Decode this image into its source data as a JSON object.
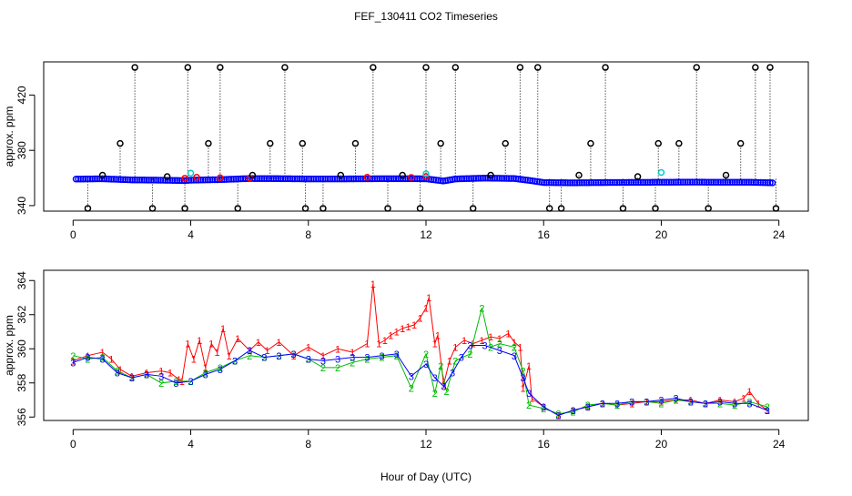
{
  "chart_data": [
    {
      "type": "scatter",
      "title": "FEF_130411  CO2 Timeseries",
      "xlabel": "",
      "ylabel": "approx. ppm",
      "xlim": [
        -1,
        25
      ],
      "ylim": [
        336,
        444
      ],
      "xticks": [
        0,
        4,
        8,
        12,
        16,
        20,
        24
      ],
      "xtick_labels": [
        "0",
        "4",
        "8",
        "12",
        "16",
        "20",
        "24"
      ],
      "yticks": [
        340,
        380,
        420
      ],
      "ytick_labels": [
        "340",
        "380",
        "420"
      ],
      "description_series": [
        {
          "name": "blue",
          "color": "#0000ff",
          "x": [
            0.1,
            1.0,
            2.0,
            3.0,
            3.8,
            4.0,
            5.0,
            6.0,
            7.0,
            8.0,
            9.0,
            10.0,
            11.0,
            12.0,
            12.6,
            13.0,
            14.0,
            15.0,
            15.6,
            16.0,
            17.0,
            18.0,
            19.0,
            20.0,
            21.0,
            22.0,
            23.0,
            23.8
          ],
          "y": [
            359.2,
            359.4,
            358.6,
            358.4,
            358.1,
            358.4,
            358.8,
            359.6,
            359.5,
            359.3,
            359.3,
            359.4,
            359.5,
            359.4,
            357.8,
            359.3,
            359.9,
            359.6,
            358.0,
            356.7,
            356.5,
            356.7,
            356.8,
            356.9,
            357.0,
            356.9,
            356.9,
            356.5
          ]
        },
        {
          "name": "red",
          "color": "#ff0000",
          "x": [
            3.8,
            4.2,
            5.0,
            6.0,
            10.0,
            11.5,
            12.0
          ],
          "y": [
            359.8,
            360.5,
            360.2,
            359.9,
            360.5,
            360.4,
            361.0
          ]
        },
        {
          "name": "cyan",
          "color": "#00cccc",
          "x": [
            4.0,
            12.0,
            20.0
          ],
          "y": [
            363.5,
            363.0,
            364.0
          ]
        },
        {
          "name": "black",
          "color": "#000000",
          "x": [
            0.5,
            1.0,
            1.6,
            2.1,
            2.7,
            3.2,
            3.8,
            3.9,
            4.6,
            5.0,
            5.6,
            6.1,
            6.7,
            7.2,
            7.8,
            7.9,
            8.5,
            9.1,
            9.6,
            10.2,
            10.7,
            11.2,
            11.8,
            12.0,
            12.5,
            13.0,
            13.6,
            14.2,
            14.7,
            15.2,
            15.8,
            16.2,
            16.6,
            17.2,
            17.6,
            18.1,
            18.7,
            19.2,
            19.8,
            19.9,
            20.6,
            21.2,
            21.6,
            22.2,
            22.7,
            23.2,
            23.7,
            23.9
          ],
          "y": [
            338,
            362,
            385,
            440,
            338,
            361,
            338,
            440,
            385,
            440,
            338,
            362,
            385,
            440,
            385,
            338,
            338,
            362,
            385,
            440,
            338,
            362,
            338,
            440,
            385,
            440,
            338,
            362,
            385,
            440,
            440,
            338,
            338,
            362,
            385,
            440,
            338,
            361,
            338,
            385,
            385,
            440,
            338,
            362,
            385,
            440,
            440,
            338
          ]
        }
      ]
    },
    {
      "type": "line",
      "title": "",
      "xlabel": "Hour of Day (UTC)",
      "ylabel": "approx. ppm",
      "xlim": [
        -1,
        25
      ],
      "ylim": [
        355.8,
        364.6
      ],
      "xticks": [
        0,
        4,
        8,
        12,
        16,
        20,
        24
      ],
      "xtick_labels": [
        "0",
        "4",
        "8",
        "12",
        "16",
        "20",
        "24"
      ],
      "yticks": [
        356,
        358,
        360,
        362,
        364
      ],
      "ytick_labels": [
        "356",
        "358",
        "360",
        "362",
        "364"
      ],
      "series": [
        {
          "name": "1",
          "color": "#ff0000",
          "x": [
            0.0,
            0.5,
            1.0,
            1.3,
            1.6,
            2.0,
            2.5,
            3.0,
            3.3,
            3.6,
            3.7,
            3.9,
            4.1,
            4.3,
            4.5,
            4.7,
            4.9,
            5.1,
            5.3,
            5.6,
            6.0,
            6.3,
            6.6,
            7.0,
            7.5,
            8.0,
            8.5,
            9.0,
            9.5,
            10.0,
            10.2,
            10.4,
            10.6,
            10.8,
            11.0,
            11.2,
            11.4,
            11.6,
            11.8,
            12.0,
            12.1,
            12.3,
            12.4,
            12.6,
            12.8,
            13.0,
            13.3,
            13.6,
            13.9,
            14.2,
            14.5,
            14.8,
            15.0,
            15.2,
            15.3,
            15.5,
            15.6,
            16.0,
            16.5,
            17.0,
            17.5,
            18.0,
            18.5,
            19.0,
            19.5,
            20.0,
            20.5,
            21.0,
            21.5,
            22.0,
            22.5,
            22.8,
            23.0,
            23.3,
            23.6
          ],
          "y": [
            359.3,
            359.6,
            359.8,
            359.4,
            358.8,
            358.4,
            358.6,
            358.7,
            358.6,
            358.2,
            358.1,
            360.3,
            359.4,
            360.5,
            358.9,
            360.3,
            359.8,
            361.2,
            359.6,
            360.6,
            359.9,
            360.4,
            359.9,
            360.4,
            359.6,
            360.1,
            359.6,
            360.0,
            359.8,
            360.3,
            363.8,
            360.3,
            360.5,
            360.8,
            361.0,
            361.2,
            361.3,
            361.4,
            361.8,
            362.4,
            363.0,
            360.3,
            360.8,
            357.9,
            359.3,
            360.1,
            360.5,
            360.3,
            360.5,
            360.7,
            360.6,
            360.9,
            360.4,
            360.1,
            357.7,
            359.0,
            357.1,
            356.6,
            356.1,
            356.4,
            356.6,
            356.8,
            356.7,
            356.8,
            356.9,
            356.9,
            357.0,
            357.0,
            356.8,
            357.0,
            356.9,
            357.1,
            357.5,
            356.8,
            356.4
          ]
        },
        {
          "name": "2",
          "color": "#00bb00",
          "x": [
            0.0,
            0.5,
            1.0,
            1.5,
            2.0,
            2.5,
            3.0,
            3.5,
            4.0,
            4.5,
            5.0,
            5.5,
            6.0,
            6.5,
            7.0,
            7.5,
            8.0,
            8.5,
            9.0,
            9.5,
            10.0,
            10.5,
            11.0,
            11.5,
            12.0,
            12.3,
            12.5,
            12.7,
            13.0,
            13.5,
            13.9,
            14.2,
            14.5,
            15.0,
            15.3,
            15.5,
            16.0,
            16.5,
            17.0,
            17.5,
            18.0,
            18.5,
            19.0,
            19.5,
            20.0,
            20.5,
            21.0,
            21.5,
            22.0,
            22.5,
            23.0,
            23.6
          ],
          "y": [
            359.6,
            359.4,
            359.5,
            358.7,
            358.3,
            358.5,
            358.0,
            358.1,
            358.1,
            358.6,
            358.9,
            359.3,
            359.6,
            359.5,
            359.6,
            359.7,
            359.4,
            358.9,
            358.9,
            359.2,
            359.4,
            359.5,
            359.6,
            357.7,
            359.7,
            357.4,
            359.0,
            357.5,
            359.3,
            359.7,
            362.4,
            360.1,
            360.3,
            360.1,
            358.7,
            356.7,
            356.5,
            356.2,
            356.3,
            356.7,
            356.8,
            356.7,
            356.9,
            356.9,
            356.8,
            357.0,
            356.9,
            356.8,
            356.8,
            356.7,
            356.9,
            356.6
          ]
        },
        {
          "name": "3",
          "color": "#0000ff",
          "x": [
            0.0,
            0.5,
            1.0,
            1.5,
            2.0,
            2.5,
            3.0,
            3.5,
            4.0,
            4.5,
            5.0,
            5.5,
            6.0,
            6.5,
            7.0,
            7.5,
            8.0,
            8.5,
            9.0,
            9.5,
            10.0,
            10.5,
            11.0,
            11.5,
            12.0,
            12.3,
            12.6,
            12.9,
            13.2,
            13.5,
            14.0,
            14.5,
            15.0,
            15.3,
            15.5,
            16.0,
            16.5,
            17.0,
            17.5,
            18.0,
            18.5,
            19.0,
            19.5,
            20.0,
            20.5,
            21.0,
            21.5,
            22.0,
            22.5,
            23.0,
            23.6
          ],
          "y": [
            359.2,
            359.5,
            359.4,
            358.6,
            358.3,
            358.5,
            358.4,
            358.0,
            358.1,
            358.5,
            358.8,
            359.3,
            359.9,
            359.5,
            359.6,
            359.7,
            359.4,
            359.3,
            359.4,
            359.5,
            359.5,
            359.6,
            359.7,
            358.4,
            359.1,
            358.3,
            357.8,
            358.6,
            359.5,
            360.2,
            360.2,
            359.9,
            359.6,
            358.3,
            357.4,
            356.6,
            356.1,
            356.4,
            356.6,
            356.8,
            356.8,
            356.9,
            356.9,
            357.0,
            357.1,
            356.9,
            356.8,
            356.9,
            356.8,
            356.8,
            356.4
          ]
        }
      ]
    }
  ]
}
